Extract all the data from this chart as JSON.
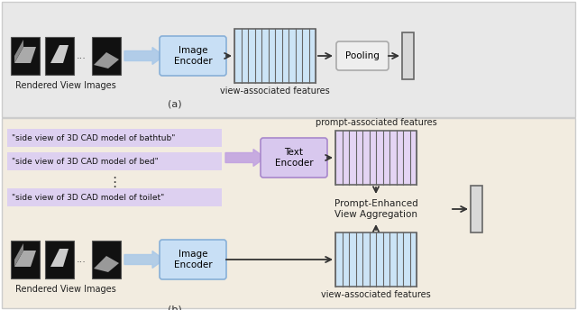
{
  "bg_top_color": "#e8e8e8",
  "bg_bottom_color": "#f2ece0",
  "panel_border": "#cccccc",
  "encoder_blue_fc": "#c8dff5",
  "encoder_blue_ec": "#88b0d8",
  "encoder_purple_fc": "#d8c8ee",
  "encoder_purple_ec": "#a888cc",
  "text_prompt_fc": "#ddd0f0",
  "text_prompt_ec": "#c0a8e0",
  "feat_blue_fc": "#cce4f6",
  "feat_purple_fc": "#e4d4f4",
  "feat_ec": "#666666",
  "arrow_blue": "#a8c8e8",
  "arrow_dark": "#333333",
  "output_fc": "#d8d8d8",
  "output_ec": "#666666",
  "pooling_fc": "#eeeeee",
  "pooling_ec": "#aaaaaa",
  "black_img": "#111111",
  "img_border": "#555555",
  "text_color": "#222222",
  "num_stripes": 12,
  "label_img_enc": "Image\nEncoder",
  "label_txt_enc": "Text\nEncoder",
  "label_pooling": "Pooling",
  "label_peva": "Prompt-Enhanced\nView Aggregation",
  "label_rendered": "Rendered View Images",
  "label_view_feat": "view-associated features",
  "label_prompt_feat": "prompt-associated features",
  "label_a": "(a)",
  "label_b": "(b)",
  "txt1": "\"side view of 3D CAD model of bathtub\"",
  "txt2": "\"side view of 3D CAD model of bed\"",
  "txt3": "\"side view of 3D CAD model of toilet\""
}
